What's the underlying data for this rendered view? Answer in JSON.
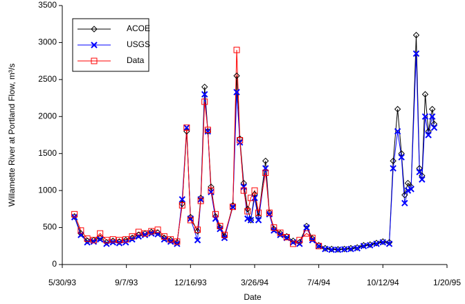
{
  "chart_data": {
    "type": "line",
    "xlabel": "Date",
    "ylabel": "Willamette River at Portland Flow, m³/s",
    "xlim": [
      "1993-05-30",
      "1995-01-20"
    ],
    "xticks": [
      {
        "value": "1993-05-30",
        "label": "5/30/93"
      },
      {
        "value": "1993-09-07",
        "label": "9/7/93"
      },
      {
        "value": "1993-12-16",
        "label": "12/16/93"
      },
      {
        "value": "1994-03-26",
        "label": "3/26/94"
      },
      {
        "value": "1994-07-04",
        "label": "7/4/94"
      },
      {
        "value": "1994-10-12",
        "label": "10/12/94"
      },
      {
        "value": "1995-01-20",
        "label": "1/20/95"
      }
    ],
    "ylim": [
      0,
      3500
    ],
    "yticks": [
      0,
      500,
      1000,
      1500,
      2000,
      2500,
      3000,
      3500
    ],
    "grid": false,
    "legend": "upper left",
    "x": [
      "1993-06-18",
      "1993-06-28",
      "1993-07-08",
      "1993-07-18",
      "1993-07-28",
      "1993-08-07",
      "1993-08-17",
      "1993-08-27",
      "1993-09-06",
      "1993-09-16",
      "1993-09-26",
      "1993-10-06",
      "1993-10-16",
      "1993-10-26",
      "1993-11-05",
      "1993-11-15",
      "1993-11-25",
      "1993-12-03",
      "1993-12-10",
      "1993-12-16",
      "1993-12-27",
      "1994-01-01",
      "1994-01-07",
      "1994-01-12",
      "1994-01-17",
      "1994-01-24",
      "1994-01-31",
      "1994-02-07",
      "1994-02-20",
      "1994-02-26",
      "1994-03-03",
      "1994-03-09",
      "1994-03-15",
      "1994-03-20",
      "1994-03-26",
      "1994-04-01",
      "1994-04-12",
      "1994-04-18",
      "1994-04-25",
      "1994-05-05",
      "1994-05-15",
      "1994-05-25",
      "1994-06-04",
      "1994-06-15",
      "1994-06-24",
      "1994-07-04",
      "1994-07-14",
      "1994-07-24",
      "1994-08-03",
      "1994-08-13",
      "1994-08-23",
      "1994-09-02",
      "1994-09-12",
      "1994-09-22",
      "1994-10-02",
      "1994-10-12",
      "1994-10-22",
      "1994-10-28",
      "1994-11-04",
      "1994-11-10",
      "1994-11-15",
      "1994-11-20",
      "1994-11-25",
      "1994-12-03",
      "1994-12-08",
      "1994-12-12",
      "1994-12-17",
      "1994-12-22",
      "1994-12-28",
      "1994-12-31"
    ],
    "series": [
      {
        "name": "ACOE",
        "color": "#000000",
        "marker": "diamond",
        "values": [
          650,
          420,
          320,
          330,
          360,
          300,
          320,
          310,
          330,
          360,
          400,
          420,
          440,
          430,
          360,
          330,
          300,
          820,
          1800,
          640,
          450,
          900,
          2400,
          1800,
          1050,
          650,
          500,
          380,
          800,
          2550,
          1700,
          1100,
          750,
          600,
          950,
          650,
          1400,
          700,
          480,
          420,
          380,
          320,
          300,
          520,
          350,
          260,
          220,
          210,
          205,
          210,
          220,
          230,
          260,
          270,
          290,
          310,
          300,
          1400,
          2100,
          1500,
          940,
          1100,
          1050,
          3100,
          1300,
          1200,
          2300,
          1800,
          2100,
          1900
        ]
      },
      {
        "name": "USGS",
        "color": "#0000ff",
        "marker": "x",
        "values": [
          640,
          400,
          300,
          310,
          340,
          280,
          300,
          290,
          300,
          340,
          380,
          400,
          420,
          410,
          340,
          310,
          280,
          880,
          1850,
          620,
          330,
          880,
          2300,
          1800,
          980,
          620,
          480,
          360,
          780,
          2330,
          1650,
          1050,
          620,
          600,
          900,
          600,
          1300,
          680,
          460,
          400,
          360,
          300,
          280,
          500,
          330,
          250,
          210,
          200,
          200,
          205,
          210,
          220,
          250,
          260,
          280,
          300,
          280,
          1300,
          1800,
          1450,
          830,
          1000,
          1020,
          2850,
          1250,
          1150,
          2000,
          1750,
          2000,
          1850
        ]
      },
      {
        "name": "Data",
        "color": "#ff0000",
        "marker": "square",
        "values": [
          680,
          460,
          350,
          330,
          420,
          330,
          340,
          330,
          340,
          380,
          440,
          420,
          450,
          470,
          380,
          340,
          310,
          800,
          1850,
          600,
          470,
          860,
          2200,
          1820,
          1000,
          680,
          520,
          400,
          780,
          2900,
          1680,
          1000,
          720,
          900,
          1000,
          700,
          1240,
          700,
          500,
          430,
          370,
          280,
          330,
          420,
          360,
          250,
          null,
          null,
          null,
          null,
          null,
          null,
          null,
          null,
          null,
          null,
          null,
          null,
          null,
          null,
          null,
          null,
          null,
          null,
          null,
          null,
          null,
          null,
          null,
          null
        ]
      }
    ]
  }
}
